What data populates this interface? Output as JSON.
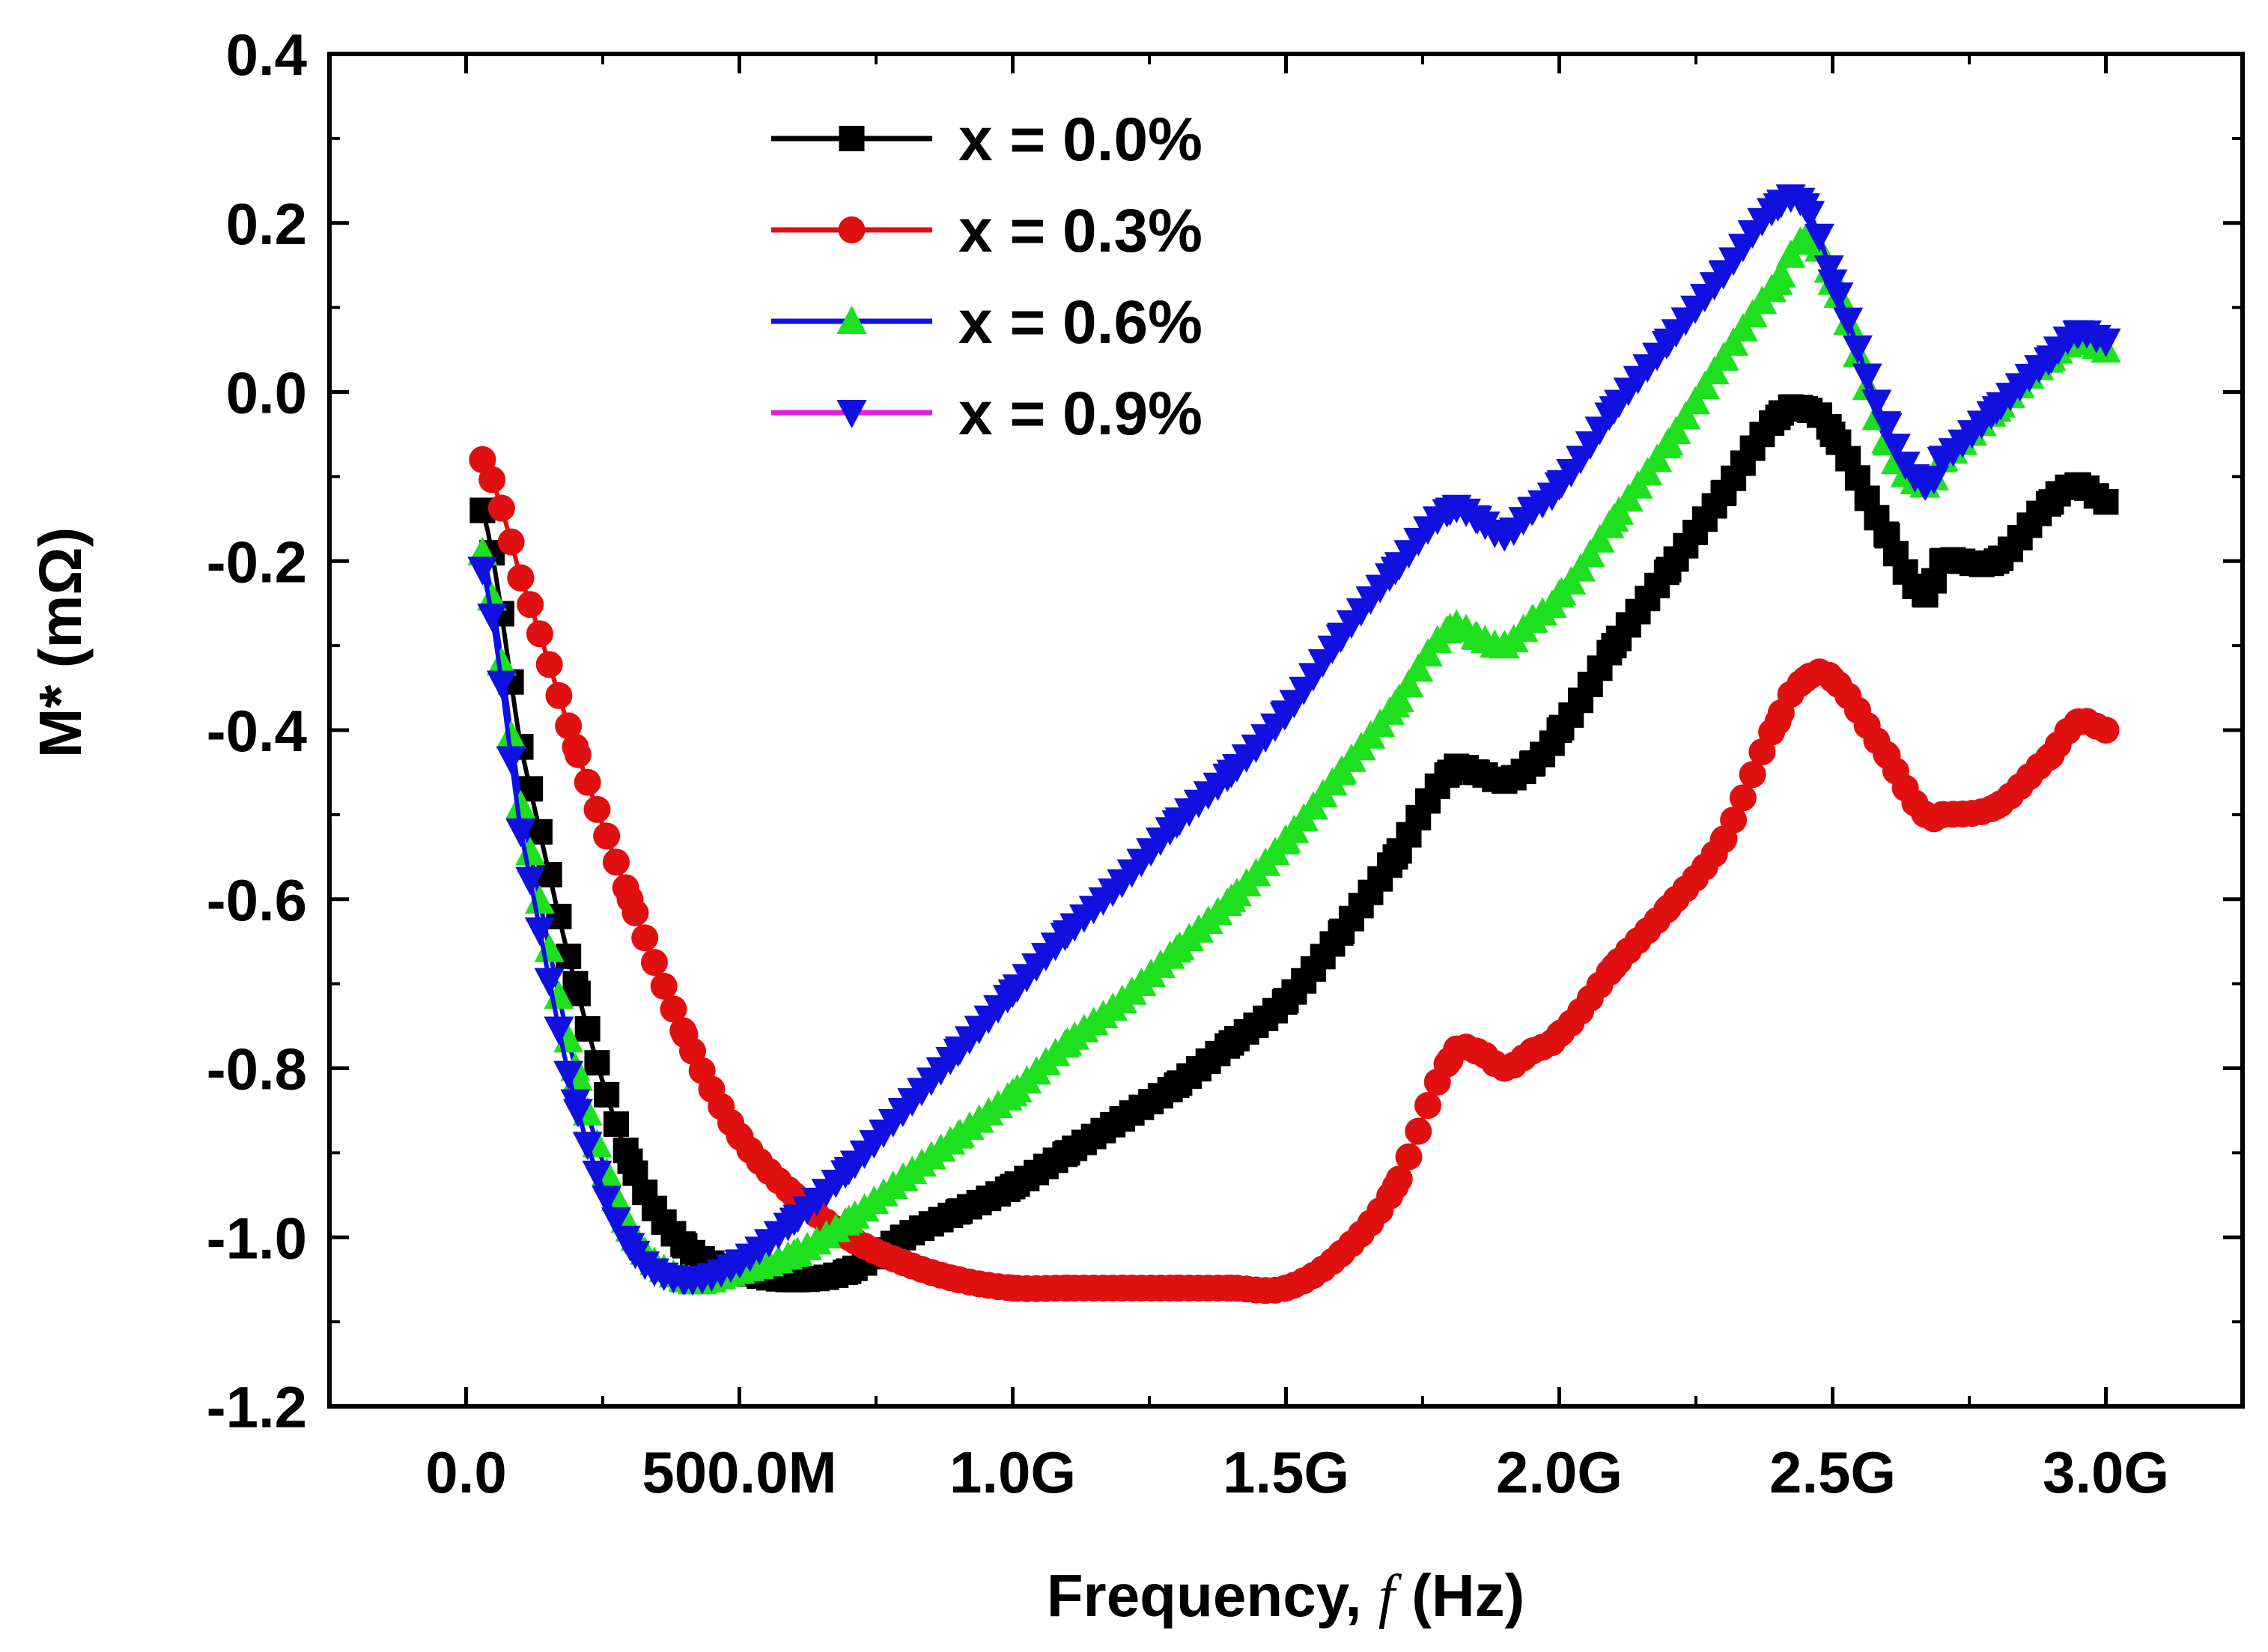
{
  "chart_data": {
    "type": "line",
    "title": "",
    "xlabel": "Frequency, ",
    "xlabel_symbol": "f",
    "xlabel_unit": " (Hz)",
    "ylabel": "M* (mΩ)",
    "xlim": [
      -0.25,
      3.25
    ],
    "ylim": [
      -1.2,
      0.4
    ],
    "grid": false,
    "legend_position": "top-left",
    "x_ticks": [
      0.0,
      0.5,
      1.0,
      1.5,
      2.0,
      2.5,
      3.0
    ],
    "x_tick_labels": [
      "0.0",
      "500.0M",
      "1.0G",
      "1.5G",
      "2.0G",
      "2.5G",
      "3.0G"
    ],
    "x_tick_unit": "GHz",
    "y_ticks": [
      0.4,
      0.2,
      0.0,
      -0.2,
      -0.4,
      -0.6,
      -0.8,
      -1.0,
      -1.2
    ],
    "y_tick_labels": [
      "0.4",
      "0.2",
      "0.0",
      "-0.2",
      "-0.4",
      "-0.6",
      "-0.8",
      "-1.0",
      "-1.2"
    ],
    "x": [
      0.03,
      0.1,
      0.2,
      0.3,
      0.4,
      0.5,
      0.6,
      0.7,
      0.8,
      0.9,
      1.0,
      1.1,
      1.2,
      1.3,
      1.4,
      1.5,
      1.6,
      1.7,
      1.8,
      1.85,
      1.9,
      1.95,
      2.0,
      2.1,
      2.2,
      2.3,
      2.4,
      2.45,
      2.5,
      2.6,
      2.67,
      2.7,
      2.8,
      2.9,
      2.95,
      3.0
    ],
    "series": [
      {
        "name": "x = 0.0%",
        "color": "#000000",
        "marker": "square",
        "values": [
          -0.14,
          -0.42,
          -0.7,
          -0.91,
          -1.01,
          -1.04,
          -1.05,
          -1.04,
          -1.0,
          -0.97,
          -0.94,
          -0.9,
          -0.86,
          -0.82,
          -0.77,
          -0.72,
          -0.64,
          -0.55,
          -0.45,
          -0.45,
          -0.46,
          -0.44,
          -0.4,
          -0.3,
          -0.21,
          -0.12,
          -0.03,
          -0.02,
          -0.05,
          -0.17,
          -0.24,
          -0.2,
          -0.2,
          -0.13,
          -0.11,
          -0.13
        ]
      },
      {
        "name": "x = 0.3%",
        "color": "#e01010",
        "marker": "circle",
        "values": [
          -0.08,
          -0.22,
          -0.42,
          -0.6,
          -0.76,
          -0.88,
          -0.95,
          -1.0,
          -1.03,
          -1.05,
          -1.06,
          -1.06,
          -1.06,
          -1.06,
          -1.06,
          -1.06,
          -1.02,
          -0.94,
          -0.79,
          -0.78,
          -0.8,
          -0.78,
          -0.76,
          -0.68,
          -0.61,
          -0.53,
          -0.39,
          -0.34,
          -0.34,
          -0.43,
          -0.5,
          -0.5,
          -0.49,
          -0.43,
          -0.39,
          -0.4
        ]
      },
      {
        "name": "x = 0.6%",
        "color": "#1010e0",
        "marker": "triangle-up",
        "values": [
          -0.19,
          -0.49,
          -0.8,
          -0.99,
          -1.05,
          -1.04,
          -1.02,
          -0.98,
          -0.93,
          -0.88,
          -0.83,
          -0.77,
          -0.72,
          -0.66,
          -0.6,
          -0.53,
          -0.45,
          -0.37,
          -0.28,
          -0.29,
          -0.3,
          -0.27,
          -0.24,
          -0.15,
          -0.06,
          0.04,
          0.13,
          0.18,
          0.13,
          -0.06,
          -0.11,
          -0.08,
          -0.02,
          0.04,
          0.06,
          0.05
        ]
      },
      {
        "name": "x = 0.9%",
        "color": "#1010e0",
        "marker": "triangle-down",
        "values": [
          -0.21,
          -0.52,
          -0.84,
          -1.01,
          -1.05,
          -1.03,
          -0.98,
          -0.92,
          -0.85,
          -0.78,
          -0.71,
          -0.64,
          -0.58,
          -0.51,
          -0.45,
          -0.38,
          -0.29,
          -0.21,
          -0.14,
          -0.15,
          -0.17,
          -0.14,
          -0.11,
          -0.02,
          0.06,
          0.14,
          0.22,
          0.22,
          0.13,
          -0.04,
          -0.11,
          -0.08,
          -0.02,
          0.04,
          0.07,
          0.06
        ]
      }
    ]
  }
}
